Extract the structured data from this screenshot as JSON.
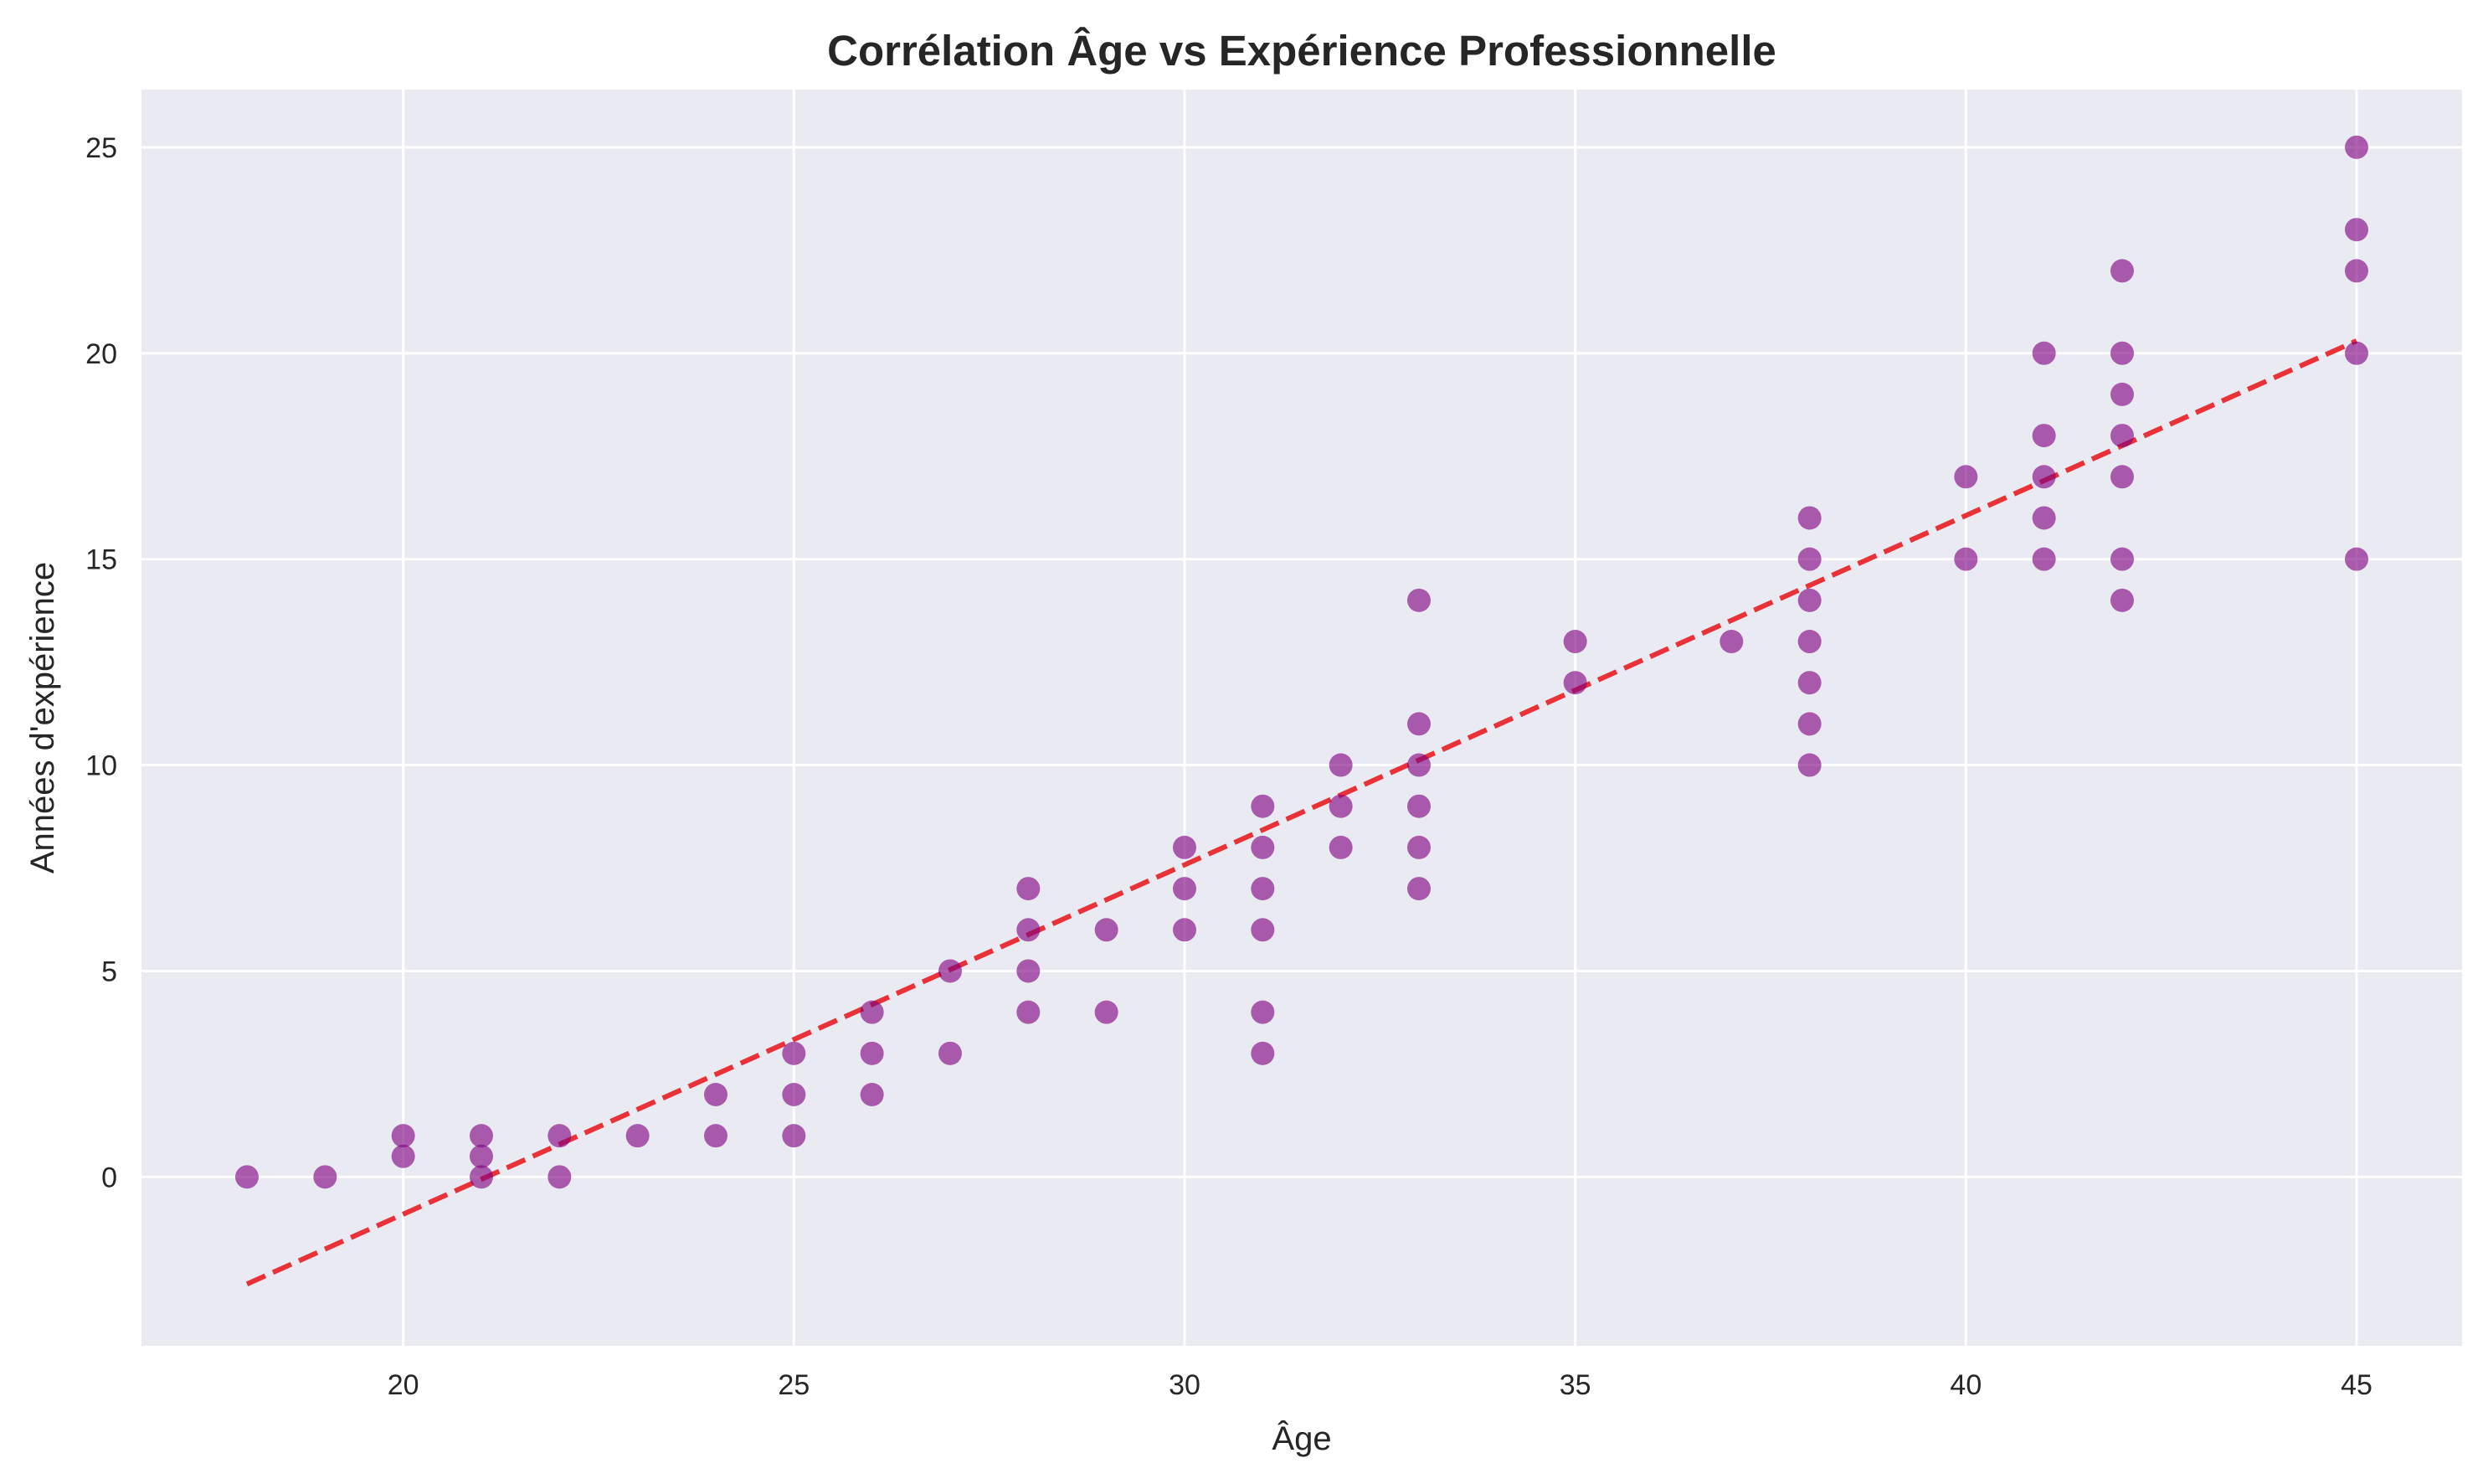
{
  "chart_data": {
    "type": "scatter",
    "title": "Corrélation Âge vs Expérience Professionnelle",
    "xlabel": "Âge",
    "ylabel": "Années d'expérience",
    "xlim": [
      16.65,
      46.35
    ],
    "ylim": [
      -4.1,
      26.4
    ],
    "xticks": [
      20,
      25,
      30,
      35,
      40,
      45
    ],
    "yticks": [
      0,
      5,
      10,
      15,
      20,
      25
    ],
    "grid": true,
    "legend": "none",
    "colors": {
      "background": "#eaeaf2",
      "points": "#800080",
      "trend": "#e8282d",
      "text": "#262626"
    },
    "series": [
      {
        "type": "scatter",
        "color": "#800080",
        "points": [
          [
            18,
            0
          ],
          [
            19,
            0
          ],
          [
            20,
            1
          ],
          [
            20,
            0.5
          ],
          [
            21,
            1
          ],
          [
            21,
            0.5
          ],
          [
            21,
            0
          ],
          [
            22,
            1
          ],
          [
            22,
            0
          ],
          [
            23,
            1
          ],
          [
            24,
            2
          ],
          [
            24,
            1
          ],
          [
            25,
            3
          ],
          [
            25,
            2
          ],
          [
            25,
            1
          ],
          [
            26,
            4
          ],
          [
            26,
            3
          ],
          [
            26,
            2
          ],
          [
            27,
            5
          ],
          [
            27,
            3
          ],
          [
            28,
            7
          ],
          [
            28,
            6
          ],
          [
            28,
            5
          ],
          [
            28,
            4
          ],
          [
            29,
            6
          ],
          [
            29,
            4
          ],
          [
            30,
            8
          ],
          [
            30,
            7
          ],
          [
            30,
            6
          ],
          [
            31,
            9
          ],
          [
            31,
            8
          ],
          [
            31,
            7
          ],
          [
            31,
            6
          ],
          [
            31,
            4
          ],
          [
            31,
            3
          ],
          [
            32,
            10
          ],
          [
            32,
            9
          ],
          [
            32,
            8
          ],
          [
            33,
            14
          ],
          [
            33,
            11
          ],
          [
            33,
            10
          ],
          [
            33,
            9
          ],
          [
            33,
            8
          ],
          [
            33,
            7
          ],
          [
            35,
            13
          ],
          [
            35,
            12
          ],
          [
            37,
            13
          ],
          [
            38,
            16
          ],
          [
            38,
            15
          ],
          [
            38,
            14
          ],
          [
            38,
            13
          ],
          [
            38,
            12
          ],
          [
            38,
            11
          ],
          [
            38,
            10
          ],
          [
            40,
            17
          ],
          [
            40,
            15
          ],
          [
            41,
            20
          ],
          [
            41,
            18
          ],
          [
            41,
            17
          ],
          [
            41,
            16
          ],
          [
            41,
            15
          ],
          [
            42,
            22
          ],
          [
            42,
            20
          ],
          [
            42,
            19
          ],
          [
            42,
            18
          ],
          [
            42,
            17
          ],
          [
            42,
            15
          ],
          [
            42,
            14
          ],
          [
            45,
            25
          ],
          [
            45,
            23
          ],
          [
            45,
            22
          ],
          [
            45,
            20
          ],
          [
            45,
            15
          ]
        ]
      },
      {
        "type": "line",
        "style": "dashed",
        "color": "#e8282d",
        "points": [
          [
            18,
            -2.6
          ],
          [
            45,
            20.3
          ]
        ]
      }
    ]
  }
}
